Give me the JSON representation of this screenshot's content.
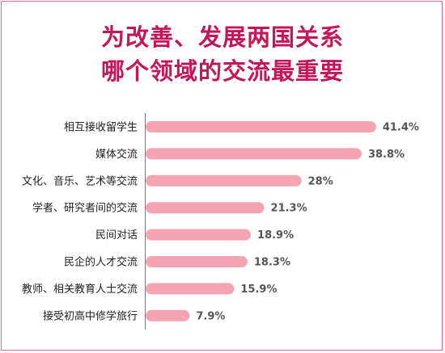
{
  "title_lines": [
    "为改善、发展两国关系",
    "哪个领域的交流最重要"
  ],
  "colors": {
    "title": "#c2185b",
    "bar": "#f6a3b3",
    "border": "#c9748f",
    "axis": "#7a7a7a"
  },
  "chart_data": {
    "type": "bar",
    "orientation": "horizontal",
    "title": "为改善、发展两国关系哪个领域的交流最重要",
    "categories": [
      "相互接收留学生",
      "媒体交流",
      "文化、音乐、艺术等交流",
      "学者、研究者间的交流",
      "民间对话",
      "民企的人才交流",
      "教师、相关教育人士交流",
      "接受初高中修学旅行"
    ],
    "values": [
      41.4,
      38.8,
      28,
      21.3,
      18.9,
      18.3,
      15.9,
      7.9
    ],
    "value_labels": [
      "41.4%",
      "38.8%",
      "28%",
      "21.3%",
      "18.9%",
      "18.3%",
      "15.9%",
      "7.9%"
    ],
    "unit": "%",
    "xlabel": "",
    "ylabel": "",
    "grid": false,
    "legend": "none"
  }
}
